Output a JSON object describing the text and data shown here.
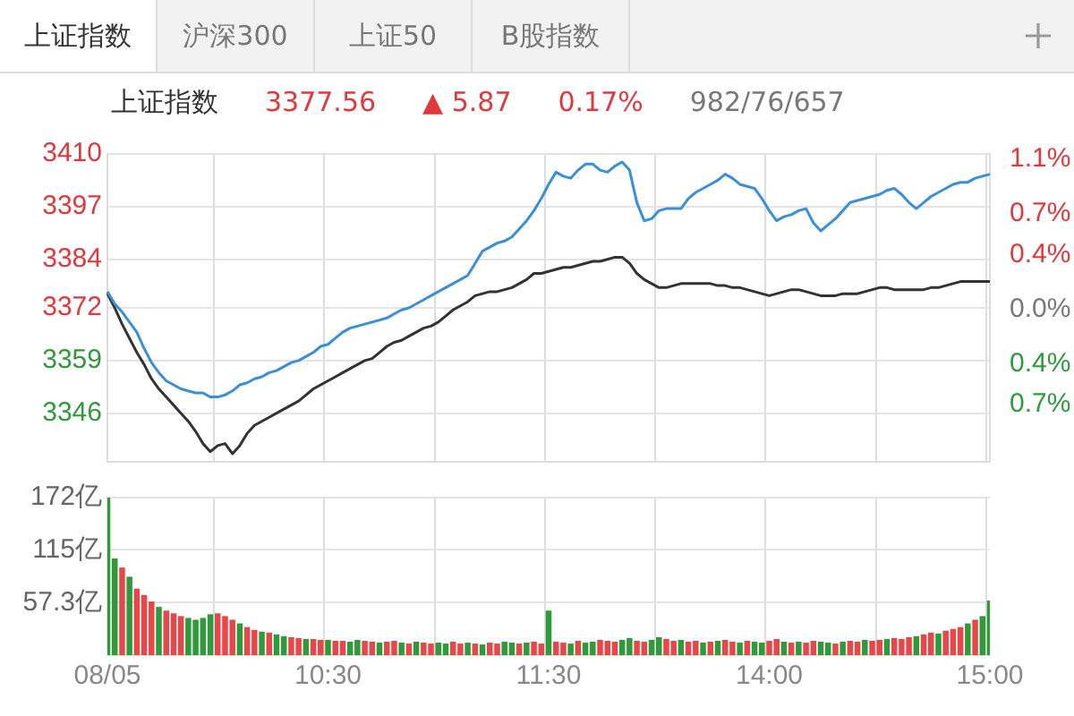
{
  "chart_data": [
    {
      "type": "line",
      "title": "上证指数",
      "annotations": [
        "上证指数",
        "沪深300",
        "上证50",
        "B股指数",
        "3377.56",
        "▲ 5.87",
        "0.17%",
        "982/76/657"
      ],
      "ylim": [
        3334,
        3410
      ],
      "yticks": [
        3410,
        3397,
        3384,
        3372,
        3359,
        3346
      ],
      "y2lim": [
        -1.12,
        1.14
      ],
      "y2ticks": [
        {
          "value": 1.1,
          "label": "1.1%"
        },
        {
          "value": 0.7,
          "label": "0.7%"
        },
        {
          "value": 0.4,
          "label": "0.4%"
        },
        {
          "value": 0,
          "label": "0.0%"
        },
        {
          "value": -0.4,
          "label": "0.4%"
        },
        {
          "value": -0.7,
          "label": "0.7%"
        }
      ],
      "tick_labels": "y",
      "grid": true,
      "legend": false,
      "marker": "none",
      "series": [
        {
          "color": "#3a8fd8",
          "values": [
            3376,
            3373,
            3371,
            3368.5,
            3366,
            3362,
            3358.5,
            3356,
            3354,
            3353,
            3352,
            3351.5,
            3351,
            3351,
            3350,
            3350,
            3350.5,
            3351.5,
            3353,
            3353.5,
            3354.5,
            3355,
            3356,
            3356.5,
            3357.5,
            3358.5,
            3359,
            3360,
            3361,
            3362.5,
            3363,
            3364.5,
            3366,
            3367,
            3367.5,
            3368,
            3368.5,
            3369,
            3369.5,
            3370.5,
            3371.5,
            3372,
            3373,
            3374,
            3375,
            3376,
            3377,
            3378,
            3379,
            3380,
            3383,
            3386,
            3387,
            3388,
            3388.5,
            3389.5,
            3391.5,
            3393.5,
            3396,
            3399,
            3402.5,
            3405.5,
            3404.5,
            3404,
            3406,
            3407.5,
            3407.5,
            3406,
            3405.5,
            3407,
            3408,
            3406,
            3398,
            3393.5,
            3394,
            3396,
            3396.5,
            3396.5,
            3396.5,
            3399,
            3400.5,
            3401.5,
            3402.5,
            3403.5,
            3405,
            3404,
            3402.5,
            3402,
            3401.5,
            3399,
            3396,
            3393.5,
            3394.5,
            3395,
            3396,
            3396.5,
            3393,
            3391,
            3392.5,
            3394,
            3396,
            3398,
            3398.5,
            3399,
            3399.5,
            3400,
            3401,
            3401.5,
            3400,
            3398,
            3396.5,
            3398,
            3399.5,
            3400.5,
            3401.5,
            3402.5,
            3403,
            3403,
            3404,
            3404.5,
            3405
          ]
        },
        {
          "color": "#333333",
          "values": [
            3375.5,
            3372,
            3368,
            3364.5,
            3361,
            3358,
            3354.5,
            3352,
            3350,
            3348,
            3346,
            3344,
            3341.5,
            3338.5,
            3336.5,
            3338,
            3338.5,
            3336,
            3338,
            3341,
            3343,
            3344,
            3345,
            3346,
            3347,
            3348,
            3349,
            3350.5,
            3352,
            3353,
            3354,
            3355,
            3356,
            3357,
            3358,
            3359,
            3359.5,
            3361,
            3362.5,
            3363.5,
            3364,
            3365,
            3366,
            3367,
            3367.5,
            3368.5,
            3370,
            3371.5,
            3372.5,
            3373.5,
            3375,
            3375.5,
            3376,
            3376,
            3376.5,
            3377,
            3378,
            3379,
            3380.5,
            3380.5,
            3381,
            3381.5,
            3382,
            3382,
            3382.5,
            3383,
            3383.5,
            3383.5,
            3384,
            3384.5,
            3384.5,
            3383,
            3380.5,
            3379,
            3378,
            3377,
            3377,
            3377.5,
            3378,
            3378,
            3378,
            3378,
            3378,
            3377.5,
            3377.5,
            3377,
            3377,
            3376.5,
            3376,
            3375.5,
            3375,
            3375.5,
            3376,
            3376.5,
            3376.5,
            3376,
            3375.5,
            3375,
            3375,
            3375,
            3375.5,
            3375.5,
            3375.5,
            3376,
            3376.5,
            3377,
            3377,
            3376.5,
            3376.5,
            3376.5,
            3376.5,
            3376.5,
            3377,
            3377,
            3377.5,
            3378,
            3378.5,
            3378.5,
            3378.5,
            3378.5,
            3378.5
          ]
        }
      ]
    },
    {
      "type": "bar",
      "categories": [
        "08/05",
        null,
        null,
        null,
        null,
        null,
        null,
        null,
        null,
        null,
        null,
        null,
        null,
        null,
        null,
        null,
        null,
        null,
        null,
        null,
        null,
        null,
        null,
        null,
        null,
        null,
        null,
        null,
        null,
        null,
        "10:30",
        null,
        null,
        null,
        null,
        null,
        null,
        null,
        null,
        null,
        null,
        null,
        null,
        null,
        null,
        null,
        null,
        null,
        null,
        null,
        null,
        null,
        null,
        null,
        null,
        null,
        null,
        null,
        null,
        null,
        "11:30",
        null,
        null,
        null,
        null,
        null,
        null,
        null,
        null,
        null,
        null,
        null,
        null,
        null,
        null,
        null,
        null,
        null,
        null,
        null,
        null,
        null,
        null,
        null,
        null,
        null,
        null,
        null,
        null,
        null,
        "14:00",
        null,
        null,
        null,
        null,
        null,
        null,
        null,
        null,
        null,
        null,
        null,
        null,
        null,
        null,
        null,
        null,
        null,
        null,
        null,
        null,
        null,
        null,
        null,
        null,
        null,
        null,
        null,
        null,
        null,
        "15:00"
      ],
      "ylim": [
        0,
        172
      ],
      "yticks": [
        {
          "value": 57.3,
          "label": "57.3亿"
        },
        {
          "value": 115,
          "label": "115亿"
        },
        {
          "value": 172,
          "label": "172亿"
        }
      ],
      "grid": true,
      "legend": false,
      "values": [
        172,
        105,
        95,
        85,
        72,
        65,
        58,
        52,
        48,
        45,
        42,
        40,
        38,
        40,
        44,
        45,
        42,
        38,
        34,
        30,
        27,
        25,
        24,
        22,
        20,
        19,
        18,
        17,
        17,
        16,
        16,
        15,
        15,
        14,
        16,
        15,
        14,
        13,
        14,
        15,
        13,
        12,
        14,
        13,
        12,
        13,
        12,
        14,
        12,
        13,
        12,
        11,
        13,
        12,
        14,
        13,
        12,
        13,
        14,
        12,
        48,
        14,
        13,
        12,
        15,
        13,
        14,
        16,
        15,
        14,
        16,
        18,
        15,
        14,
        16,
        19,
        17,
        15,
        16,
        14,
        15,
        13,
        14,
        15,
        16,
        14,
        13,
        15,
        14,
        13,
        15,
        17,
        14,
        13,
        14,
        13,
        15,
        14,
        13,
        12,
        14,
        15,
        14,
        16,
        15,
        16,
        17,
        18,
        17,
        19,
        20,
        22,
        24,
        23,
        26,
        28,
        30,
        34,
        38,
        42,
        59
      ],
      "colors": [
        "#2f9a3a",
        "#2f9a3a",
        "#e8474a",
        "#2f9a3a",
        "#e8474a",
        "#e8474a",
        "#e8474a",
        "#2f9a3a",
        "#e8474a",
        "#e8474a",
        "#e8474a",
        "#2f9a3a",
        "#2f9a3a",
        "#2f9a3a",
        "#2f9a3a",
        "#e8474a",
        "#e8474a",
        "#e8474a",
        "#2f9a3a",
        "#e8474a",
        "#e8474a",
        "#2f9a3a",
        "#e8474a",
        "#2f9a3a",
        "#2f9a3a",
        "#e8474a",
        "#e8474a",
        "#2f9a3a",
        "#e8474a",
        "#e8474a",
        "#2f9a3a",
        "#e8474a",
        "#e8474a",
        "#2f9a3a",
        "#2f9a3a",
        "#e8474a",
        "#e8474a",
        "#2f9a3a",
        "#e8474a",
        "#e8474a",
        "#2f9a3a",
        "#e8474a",
        "#2f9a3a",
        "#e8474a",
        "#e8474a",
        "#2f9a3a",
        "#2f9a3a",
        "#e8474a",
        "#e8474a",
        "#2f9a3a",
        "#e8474a",
        "#2f9a3a",
        "#e8474a",
        "#e8474a",
        "#2f9a3a",
        "#2f9a3a",
        "#e8474a",
        "#2f9a3a",
        "#e8474a",
        "#e8474a",
        "#2f9a3a",
        "#e8474a",
        "#e8474a",
        "#2f9a3a",
        "#e8474a",
        "#2f9a3a",
        "#2f9a3a",
        "#e8474a",
        "#e8474a",
        "#e8474a",
        "#2f9a3a",
        "#2f9a3a",
        "#e8474a",
        "#e8474a",
        "#2f9a3a",
        "#2f9a3a",
        "#e8474a",
        "#e8474a",
        "#2f9a3a",
        "#e8474a",
        "#e8474a",
        "#2f9a3a",
        "#e8474a",
        "#2f9a3a",
        "#e8474a",
        "#e8474a",
        "#2f9a3a",
        "#e8474a",
        "#2f9a3a",
        "#2f9a3a",
        "#e8474a",
        "#e8474a",
        "#2f9a3a",
        "#e8474a",
        "#2f9a3a",
        "#e8474a",
        "#e8474a",
        "#2f9a3a",
        "#2f9a3a",
        "#e8474a",
        "#2f9a3a",
        "#e8474a",
        "#e8474a",
        "#2f9a3a",
        "#e8474a",
        "#e8474a",
        "#2f9a3a",
        "#e8474a",
        "#e8474a",
        "#e8474a",
        "#2f9a3a",
        "#e8474a",
        "#e8474a",
        "#2f9a3a",
        "#e8474a",
        "#e8474a",
        "#e8474a",
        "#2f9a3a",
        "#e8474a",
        "#2f9a3a",
        "#2f9a3a"
      ]
    }
  ]
}
